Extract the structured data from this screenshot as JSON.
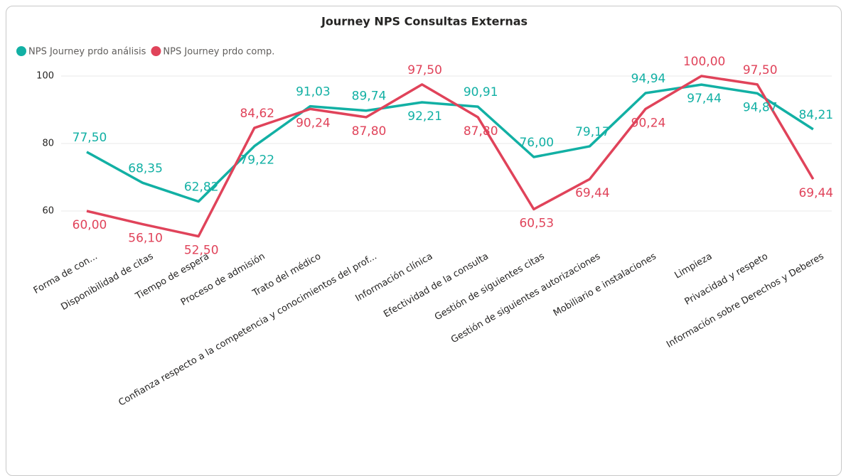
{
  "chart_data": {
    "type": "line",
    "title": "Journey NPS Consultas Externas",
    "categories": [
      "Forma de con...",
      "Disponibilidad de citas",
      "Tiempo de espera",
      "Proceso de admisión",
      "Trato del médico",
      "Confianza respecto a la competencia y conocimientos del prof...",
      "Información clínica",
      "Efectividad de la consulta",
      "Gestión de siguientes citas",
      "Gestión de siguientes autorizaciones",
      "Mobiliario e instalaciones",
      "Limpieza",
      "Privacidad y respeto",
      "Información sobre Derechos y Deberes"
    ],
    "series": [
      {
        "name": "NPS Journey prdo análisis",
        "color": "#12b0a4",
        "values": [
          77.5,
          68.35,
          62.82,
          79.22,
          91.03,
          89.74,
          92.21,
          90.91,
          76.0,
          79.17,
          94.94,
          97.44,
          94.87,
          84.21
        ],
        "value_labels": [
          "77,50",
          "68,35",
          "62,82",
          "79,22",
          "91,03",
          "89,74",
          "92,21",
          "90,91",
          "76,00",
          "79,17",
          "94,94",
          "97,44",
          "94,87",
          "84,21"
        ]
      },
      {
        "name": "NPS Journey prdo comp.",
        "color": "#e0435a",
        "values": [
          60.0,
          56.1,
          52.5,
          84.62,
          90.24,
          87.8,
          97.5,
          87.8,
          60.53,
          69.44,
          90.24,
          100.0,
          97.5,
          69.44
        ],
        "value_labels": [
          "60,00",
          "56,10",
          "52,50",
          "84,62",
          "90,24",
          "87,80",
          "97,50",
          "87,80",
          "60,53",
          "69,44",
          "90,24",
          "100,00",
          "97,50",
          "69,44"
        ]
      }
    ],
    "ylim": [
      50,
      102
    ],
    "yticks": [
      60,
      80,
      100
    ],
    "grid": true,
    "legend": "top-left"
  }
}
